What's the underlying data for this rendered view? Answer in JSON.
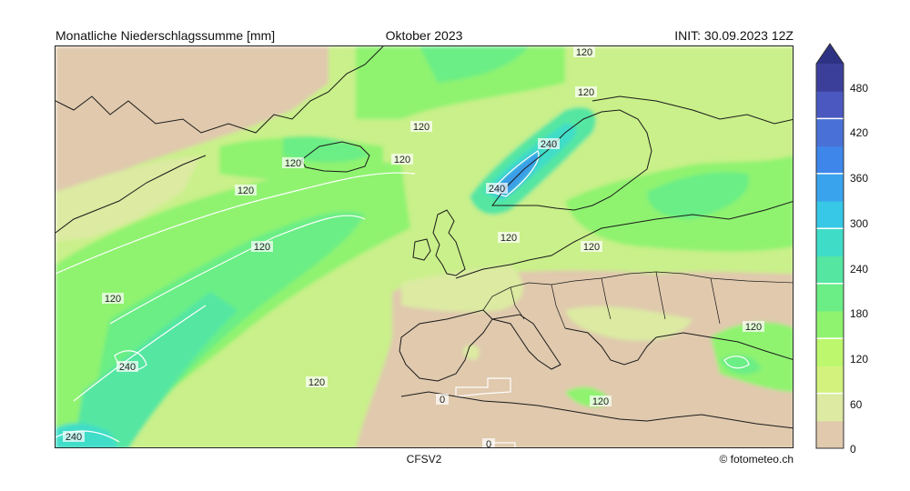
{
  "header": {
    "title_left": "Monatliche Niederschlagssumme [mm]",
    "title_center": "Oktober 2023",
    "title_right": "INIT: 30.09.2023 12Z"
  },
  "footer": {
    "model": "CFSV2",
    "credit": "© fotometeo.ch"
  },
  "map": {
    "contour_labels": [
      "120",
      "120",
      "120",
      "120",
      "120",
      "120",
      "120",
      "120",
      "120",
      "120",
      "120",
      "120",
      "120",
      "240",
      "240",
      "240",
      "240",
      "0",
      "0"
    ]
  },
  "colorbar": {
    "unit": "mm",
    "ticks": [
      "480",
      "420",
      "360",
      "300",
      "240",
      "180",
      "120",
      "60",
      "0"
    ],
    "colors": [
      "#e0c9ad",
      "#dceaa2",
      "#d2f27d",
      "#bdf76e",
      "#8ff36f",
      "#6bee85",
      "#55e6a2",
      "#3fddc8",
      "#36c8e6",
      "#3aa3ee",
      "#3e86ea",
      "#4970d6",
      "#4a58c0",
      "#3c3f9a"
    ]
  }
}
